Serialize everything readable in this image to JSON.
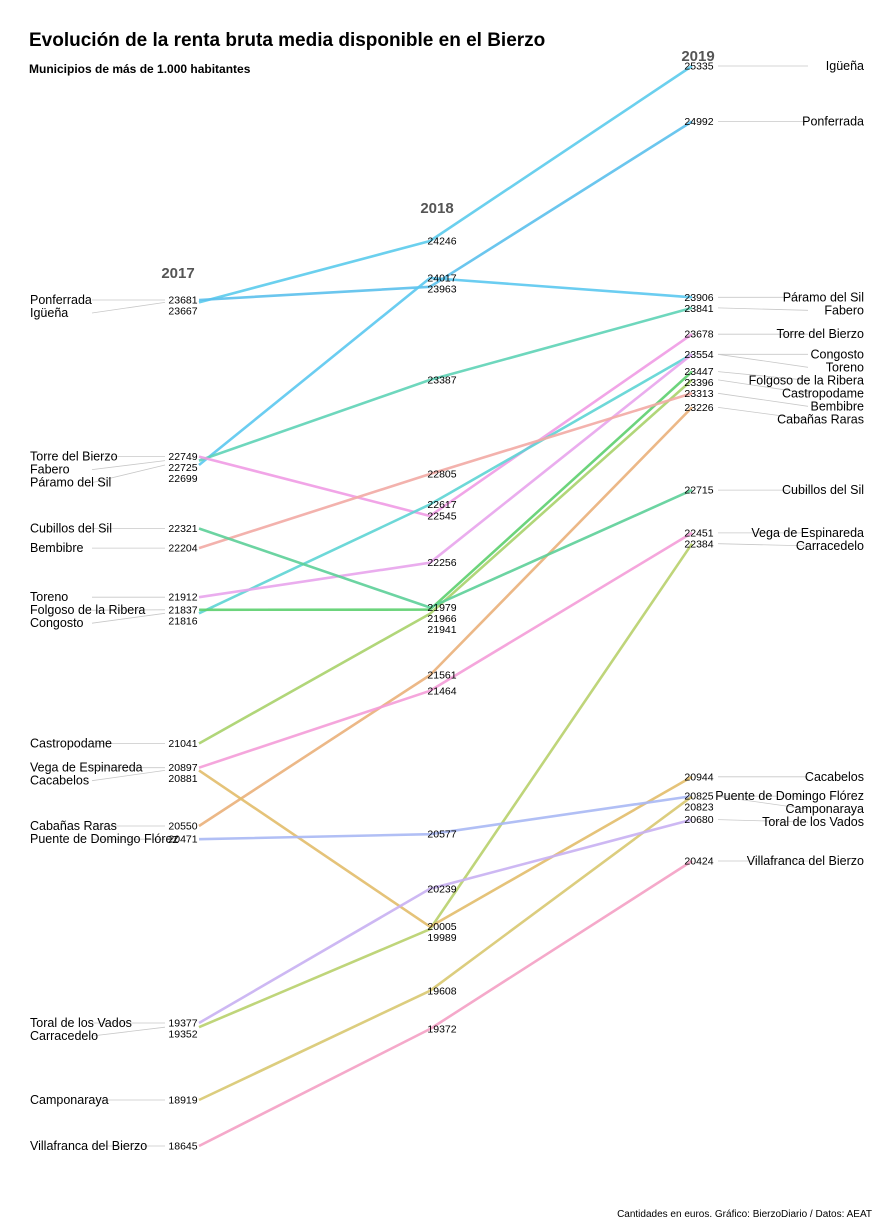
{
  "title": "Evolución de la renta bruta media disponible en el Bierzo",
  "subtitle": "Municipios de más de 1.000 habitantes",
  "footer": "Cantidades en euros. Gráfico: BierzoDiario / Datos: AEAT",
  "chart_data": {
    "type": "line",
    "x": [
      "2017",
      "2018",
      "2019"
    ],
    "yrange": [
      18645,
      25335
    ],
    "grid": false,
    "legend": "none",
    "series": [
      {
        "name": "Igüeña",
        "values": [
          23667,
          24246,
          25335
        ],
        "color": "#5bcbec"
      },
      {
        "name": "Ponferrada",
        "values": [
          23681,
          23963,
          24992
        ],
        "color": "#5bc0ec"
      },
      {
        "name": "Páramo del Sil",
        "values": [
          22699,
          24017,
          23906
        ],
        "color": "#5bc8f0"
      },
      {
        "name": "Fabero",
        "values": [
          22725,
          23387,
          23841
        ],
        "color": "#5ed3b6"
      },
      {
        "name": "Torre del Bierzo",
        "values": [
          22749,
          22545,
          23678
        ],
        "color": "#f09be4"
      },
      {
        "name": "Congosto",
        "values": [
          21816,
          22617,
          23554
        ],
        "color": "#5dd4d4"
      },
      {
        "name": "Toreno",
        "values": [
          21912,
          22256,
          23554
        ],
        "color": "#e8a4ec"
      },
      {
        "name": "Folgoso de la Ribera",
        "values": [
          21837,
          21966,
          23447
        ],
        "color": "#5ccf6e"
      },
      {
        "name": "Castropodame",
        "values": [
          21041,
          21941,
          23396
        ],
        "color": "#a8d26a"
      },
      {
        "name": "Bembibre",
        "values": [
          22204,
          22805,
          23313
        ],
        "color": "#f2aaa4"
      },
      {
        "name": "Cabañas Raras",
        "values": [
          20550,
          21561,
          23226
        ],
        "color": "#eab07a"
      },
      {
        "name": "Cubillos del Sil",
        "values": [
          22321,
          21979,
          22715
        ],
        "color": "#5ccf98"
      },
      {
        "name": "Vega de Espinareda",
        "values": [
          20897,
          21464,
          22451
        ],
        "color": "#f49cd8"
      },
      {
        "name": "Carracedelo",
        "values": [
          19352,
          19989,
          22384
        ],
        "color": "#b8d06c"
      },
      {
        "name": "Cacabelos",
        "values": [
          20881,
          20005,
          20944
        ],
        "color": "#e2bc6a"
      },
      {
        "name": "Puente de Domingo Flórez",
        "values": [
          20471,
          20577,
          20825
        ],
        "color": "#a8b8f4"
      },
      {
        "name": "Camponaraya",
        "values": [
          18919,
          19608,
          20823
        ],
        "color": "#d8c870"
      },
      {
        "name": "Toral de los Vados",
        "values": [
          19377,
          20239,
          20680
        ],
        "color": "#c8b0f2"
      },
      {
        "name": "Villafranca del Bierzo",
        "values": [
          18645,
          19372,
          20424
        ],
        "color": "#f4a0c4"
      }
    ]
  }
}
